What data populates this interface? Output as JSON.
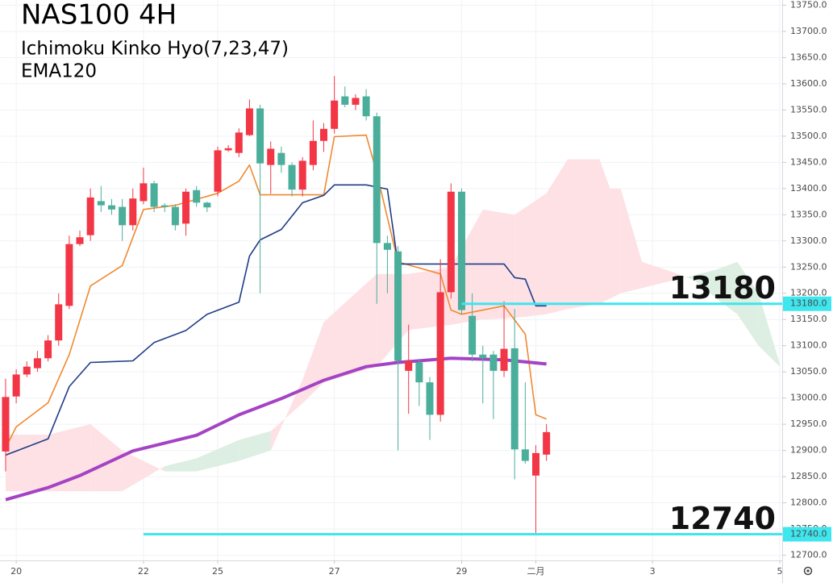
{
  "chart_data": {
    "type": "candlestick",
    "title": "NAS100 4H",
    "subtitle": [
      "Ichimoku Kinko Hyo(7,23,47)",
      "EMA120"
    ],
    "x": [
      0,
      1,
      2,
      3,
      4,
      5,
      6,
      7,
      8,
      9,
      10,
      11,
      12,
      13,
      14,
      15,
      16,
      17,
      18,
      19,
      20,
      21,
      22,
      23,
      24,
      25,
      26,
      27,
      28,
      29,
      30,
      31,
      32,
      33,
      34,
      35,
      36,
      37,
      38,
      39,
      40,
      41,
      42,
      43,
      44,
      45,
      46,
      47,
      48,
      49,
      50,
      51
    ],
    "open": [
      12898,
      13003,
      13045,
      13057,
      13076,
      13110,
      13176,
      13294,
      13311,
      13376,
      13368,
      13365,
      13330,
      13376,
      13410,
      13368,
      13365,
      13333,
      13397,
      13373,
      13394,
      13473,
      13468,
      13502,
      13553,
      13445,
      13468,
      13445,
      13398,
      13445,
      13491,
      13514,
      13576,
      13560,
      13576,
      13538,
      13296,
      13280,
      13052,
      13068,
      13030,
      12968,
      13202,
      13394,
      13157,
      13083,
      13083,
      13052,
      13095,
      12902,
      12852,
      12892
    ],
    "high": [
      13037,
      13055,
      13070,
      13090,
      13120,
      13200,
      13310,
      13320,
      13400,
      13405,
      13380,
      13380,
      13400,
      13440,
      13415,
      13372,
      13370,
      13400,
      13405,
      13375,
      13480,
      13483,
      13515,
      13570,
      13560,
      13490,
      13480,
      13450,
      13460,
      13530,
      13525,
      13615,
      13595,
      13580,
      13590,
      13545,
      13310,
      13290,
      13140,
      13075,
      13040,
      13265,
      13410,
      13400,
      13200,
      13100,
      13090,
      13185,
      13170,
      13030,
      12910,
      12950
    ],
    "low": [
      12860,
      12990,
      13040,
      13050,
      13070,
      13100,
      13170,
      13290,
      13300,
      13355,
      13350,
      13300,
      13320,
      13370,
      13355,
      13355,
      13320,
      13310,
      13365,
      13355,
      13385,
      13470,
      13460,
      13500,
      13200,
      13390,
      13430,
      13385,
      13385,
      13435,
      13470,
      13505,
      13555,
      13550,
      13530,
      13180,
      13200,
      12900,
      12970,
      12985,
      12920,
      12955,
      13190,
      13160,
      13070,
      12990,
      12960,
      13040,
      12845,
      12875,
      12740,
      12880
    ],
    "close": [
      13002,
      13045,
      13060,
      13076,
      13110,
      13179,
      13294,
      13307,
      13383,
      13368,
      13360,
      13330,
      13381,
      13410,
      13365,
      13365,
      13330,
      13394,
      13373,
      13364,
      13473,
      13477,
      13507,
      13553,
      13448,
      13476,
      13445,
      13398,
      13453,
      13491,
      13514,
      13568,
      13560,
      13573,
      13538,
      13296,
      13283,
      13071,
      13071,
      13030,
      12968,
      13202,
      13394,
      13168,
      13083,
      13076,
      13052,
      13094,
      12902,
      12880,
      12895,
      12935
    ],
    "up_color": "#f23645",
    "down_color": "#4aae9b",
    "cloud": {
      "x": [
        0,
        4,
        8,
        11,
        15,
        18,
        22,
        25,
        28,
        30,
        35,
        38,
        42,
        45,
        48,
        51,
        53,
        56,
        57,
        58,
        60,
        63,
        64,
        65,
        67,
        69,
        71,
        73
      ],
      "span_a": [
        12822,
        12822,
        12822,
        12822,
        12870,
        12885,
        12920,
        12937,
        12990,
        13030,
        13060,
        13130,
        13140,
        13150,
        13153,
        13160,
        13170,
        13180,
        13190,
        13200,
        13210,
        13225,
        13230,
        13235,
        13245,
        13260,
        13200,
        13065
      ],
      "span_b": [
        12930,
        12930,
        12950,
        12900,
        12860,
        12860,
        12880,
        12900,
        13035,
        13145,
        13237,
        13237,
        13250,
        13360,
        13350,
        13391,
        13456,
        13456,
        13400,
        13400,
        13260,
        13240,
        13232,
        13225,
        13190,
        13160,
        13100,
        13060
      ],
      "up_color": "#dcefe2",
      "down_color": "#fde1e5"
    },
    "lines": [
      {
        "color": "#f0892f",
        "x": [
          0,
          1,
          4,
          6,
          8,
          11,
          13,
          16,
          20,
          22,
          23,
          24,
          30,
          31,
          34,
          35,
          37,
          41,
          42,
          43,
          47,
          49,
          50,
          51
        ],
        "values": [
          12905,
          12945,
          12991,
          13083,
          13214,
          13253,
          13360,
          13368,
          13391,
          13414,
          13445,
          13388,
          13388,
          13499,
          13502,
          13430,
          13260,
          13237,
          13168,
          13160,
          13176,
          13122,
          12968,
          12960
        ]
      },
      {
        "color": "#1f3c88",
        "x": [
          0,
          4,
          6,
          8,
          12,
          14,
          17,
          19,
          22,
          23,
          24,
          26,
          28,
          30,
          31,
          34,
          36,
          37,
          47,
          48,
          49,
          50,
          51
        ],
        "values": [
          12891,
          12922,
          13022,
          13068,
          13071,
          13106,
          13129,
          13160,
          13183,
          13271,
          13302,
          13322,
          13373,
          13387,
          13407,
          13407,
          13399,
          13256,
          13256,
          13230,
          13227,
          13176,
          13176
        ]
      },
      {
        "color": "#a443c4",
        "x": [
          0,
          4,
          7,
          12,
          18,
          22,
          26,
          30,
          34,
          37,
          42,
          47,
          51
        ],
        "values": [
          12806,
          12829,
          12852,
          12899,
          12929,
          12968,
          12999,
          13034,
          13060,
          13068,
          13076,
          13073,
          13065
        ]
      }
    ],
    "levels": [
      {
        "value": 13180,
        "label": "13180",
        "axis_label": "13180.0",
        "x_start": 43,
        "color": "#3ee6ee"
      },
      {
        "value": 12740,
        "label": "12740",
        "axis_label": "12740.0",
        "x_start": 13,
        "color": "#3ee6ee"
      }
    ],
    "xlim": [
      -0.53,
      73.23
    ],
    "ylim": [
      12690,
      13760
    ],
    "xticks": [
      {
        "value": 1,
        "label": "20"
      },
      {
        "value": 13,
        "label": "22"
      },
      {
        "value": 20,
        "label": "25"
      },
      {
        "value": 31,
        "label": "27"
      },
      {
        "value": 43,
        "label": "29"
      },
      {
        "value": 50,
        "label": "二月"
      },
      {
        "value": 61,
        "label": "3"
      },
      {
        "value": 73,
        "label": "5"
      }
    ],
    "yticks": [
      {
        "value": 12700,
        "label": "12700.0"
      },
      {
        "value": 12750,
        "label": "12750.0"
      },
      {
        "value": 12800,
        "label": "12800.0"
      },
      {
        "value": 12850,
        "label": "12850.0"
      },
      {
        "value": 12900,
        "label": "12900.0"
      },
      {
        "value": 12950,
        "label": "12950.0"
      },
      {
        "value": 13000,
        "label": "13000.0"
      },
      {
        "value": 13050,
        "label": "13050.0"
      },
      {
        "value": 13100,
        "label": "13100.0"
      },
      {
        "value": 13150,
        "label": "13150.0"
      },
      {
        "value": 13200,
        "label": "13200.0"
      },
      {
        "value": 13250,
        "label": "13250.0"
      },
      {
        "value": 13300,
        "label": "13300.0"
      },
      {
        "value": 13350,
        "label": "13350.0"
      },
      {
        "value": 13400,
        "label": "13400.0"
      },
      {
        "value": 13450,
        "label": "13450.0"
      },
      {
        "value": 13500,
        "label": "13500.0"
      },
      {
        "value": 13550,
        "label": "13550.0"
      },
      {
        "value": 13600,
        "label": "13600.0"
      },
      {
        "value": 13650,
        "label": "13650.0"
      },
      {
        "value": 13700,
        "label": "13700.0"
      },
      {
        "value": 13750,
        "label": "13750.0"
      }
    ],
    "grid": true
  }
}
